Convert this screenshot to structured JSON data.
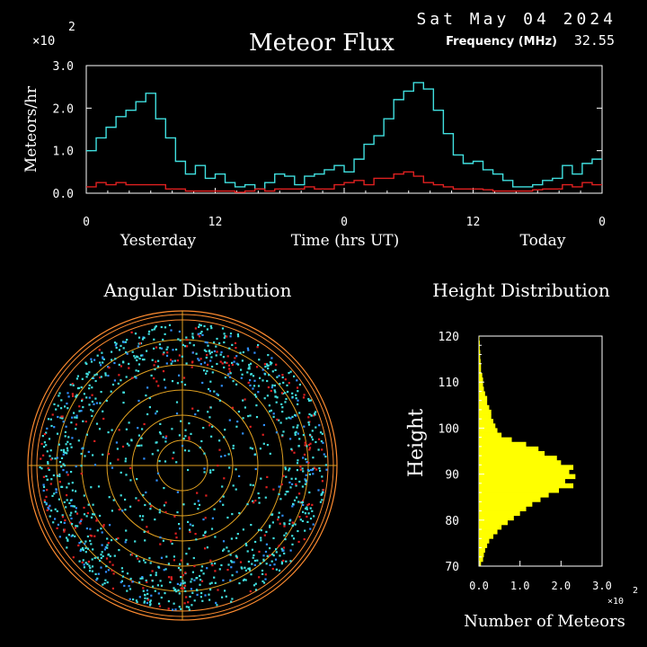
{
  "header": {
    "date": "Sat May 04 2024",
    "title": "Meteor Flux",
    "frequency_label": "Frequency (MHz)",
    "frequency_value": "32.55",
    "multiplier": "×10",
    "multiplier_exp": "2"
  },
  "flux_chart": {
    "type": "line",
    "ylabel": "Meteors/hr",
    "xlabel": "Time (hrs UT)",
    "ylim": [
      0,
      3.0
    ],
    "yticks": [
      "0.0",
      "1.0",
      "2.0",
      "3.0"
    ],
    "xticks": [
      "0",
      "12",
      "0",
      "12",
      "0"
    ],
    "xlim": [
      0,
      48
    ],
    "day_labels": {
      "left": "Yesterday",
      "right": "Today"
    },
    "series": [
      {
        "color": "#40e0e0",
        "values": [
          1.0,
          1.3,
          1.55,
          1.8,
          1.95,
          2.15,
          2.35,
          1.75,
          1.3,
          0.75,
          0.45,
          0.65,
          0.35,
          0.45,
          0.25,
          0.15,
          0.2,
          0.1,
          0.25,
          0.45,
          0.4,
          0.2,
          0.4,
          0.45,
          0.55,
          0.65,
          0.5,
          0.8,
          1.15,
          1.35,
          1.75,
          2.2,
          2.4,
          2.6,
          2.45,
          1.95,
          1.4,
          0.9,
          0.7,
          0.75,
          0.55,
          0.45,
          0.3,
          0.15,
          0.15,
          0.2,
          0.3,
          0.35,
          0.65,
          0.45,
          0.7,
          0.8
        ]
      },
      {
        "color": "#e02020",
        "values": [
          0.15,
          0.25,
          0.2,
          0.25,
          0.2,
          0.2,
          0.2,
          0.2,
          0.1,
          0.1,
          0.05,
          0.05,
          0.05,
          0.05,
          0.05,
          0.02,
          0.05,
          0.1,
          0.05,
          0.1,
          0.1,
          0.1,
          0.15,
          0.1,
          0.1,
          0.2,
          0.25,
          0.3,
          0.2,
          0.35,
          0.35,
          0.45,
          0.5,
          0.4,
          0.25,
          0.2,
          0.15,
          0.1,
          0.1,
          0.1,
          0.08,
          0.05,
          0.05,
          0.05,
          0.05,
          0.08,
          0.1,
          0.1,
          0.2,
          0.15,
          0.25,
          0.2
        ]
      }
    ]
  },
  "angular": {
    "title": "Angular Distribution"
  },
  "height_chart": {
    "type": "bar",
    "title": "Height Distribution",
    "ylabel": "Height",
    "xlabel": "Number of Meteors",
    "ylim": [
      70,
      120
    ],
    "yticks": [
      "70",
      "80",
      "90",
      "100",
      "110",
      "120"
    ],
    "xlim": [
      0,
      3.0
    ],
    "xticks": [
      "0.0",
      "1.0",
      "2.0",
      "3.0"
    ],
    "multiplier": "×10",
    "multiplier_exp": "2",
    "color": "#ffff00",
    "heights": [
      71,
      72,
      73,
      74,
      75,
      76,
      77,
      78,
      79,
      80,
      81,
      82,
      83,
      84,
      85,
      86,
      87,
      88,
      89,
      90,
      91,
      92,
      93,
      94,
      95,
      96,
      97,
      98,
      99,
      100,
      101,
      102,
      103,
      104,
      105,
      106,
      107,
      108,
      109,
      110,
      111,
      112,
      113,
      114,
      115,
      116,
      117,
      118,
      119,
      120
    ],
    "values": [
      0.05,
      0.1,
      0.12,
      0.15,
      0.2,
      0.25,
      0.35,
      0.45,
      0.55,
      0.7,
      0.85,
      1.0,
      1.15,
      1.3,
      1.5,
      1.7,
      1.95,
      2.3,
      2.1,
      2.35,
      2.2,
      2.3,
      2.0,
      1.9,
      1.6,
      1.45,
      1.15,
      0.8,
      0.55,
      0.45,
      0.4,
      0.35,
      0.3,
      0.3,
      0.25,
      0.2,
      0.2,
      0.15,
      0.12,
      0.1,
      0.1,
      0.08,
      0.05,
      0.05,
      0.04,
      0.03,
      0.03,
      0.02,
      0.02,
      0.01
    ]
  }
}
